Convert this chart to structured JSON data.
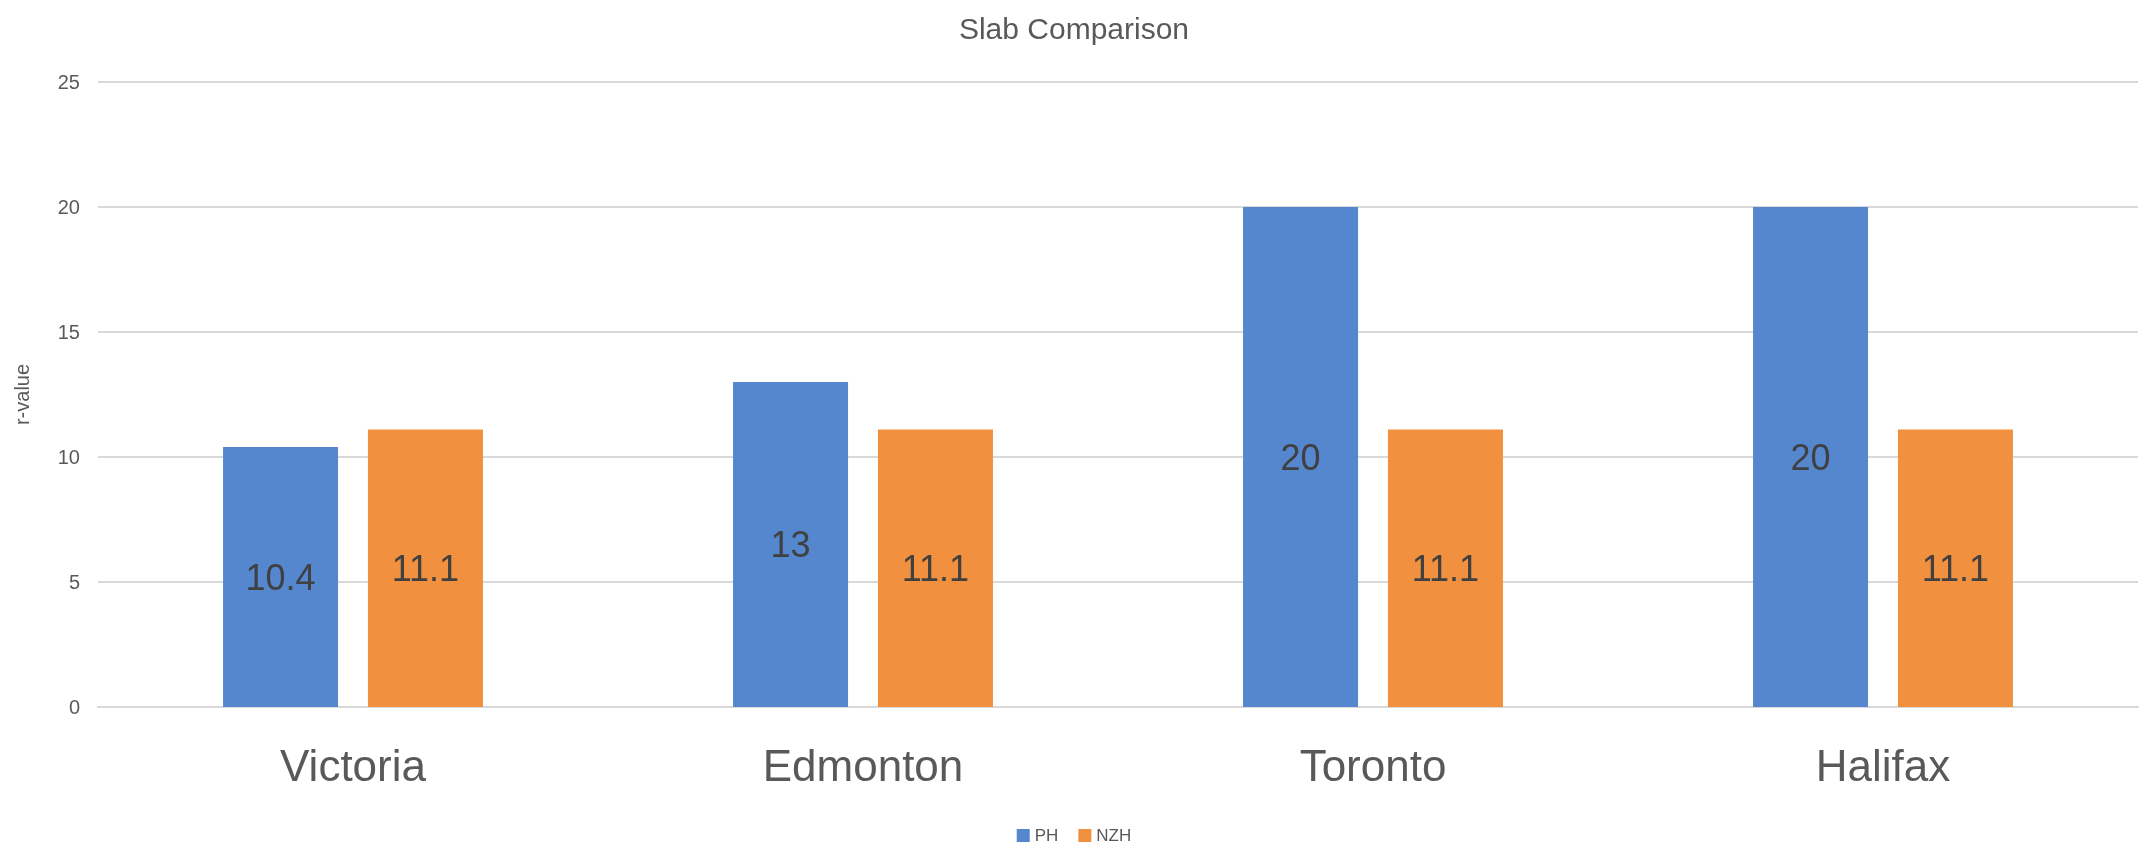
{
  "chart_data": {
    "type": "bar",
    "title": "Slab Comparison",
    "ylabel": "r-value",
    "categories": [
      "Victoria",
      "Edmonton",
      "Toronto",
      "Halifax"
    ],
    "series": [
      {
        "name": "PH",
        "color": "#5587cf",
        "values": [
          10.4,
          13,
          20,
          20
        ]
      },
      {
        "name": "NZH",
        "color": "#f1913f",
        "values": [
          11.1,
          11.1,
          11.1,
          11.1
        ]
      }
    ],
    "ylim": [
      0,
      25
    ],
    "yticks": [
      0,
      5,
      10,
      15,
      20,
      25
    ],
    "grid": "y",
    "legend": "bottom",
    "data_labels": true
  }
}
